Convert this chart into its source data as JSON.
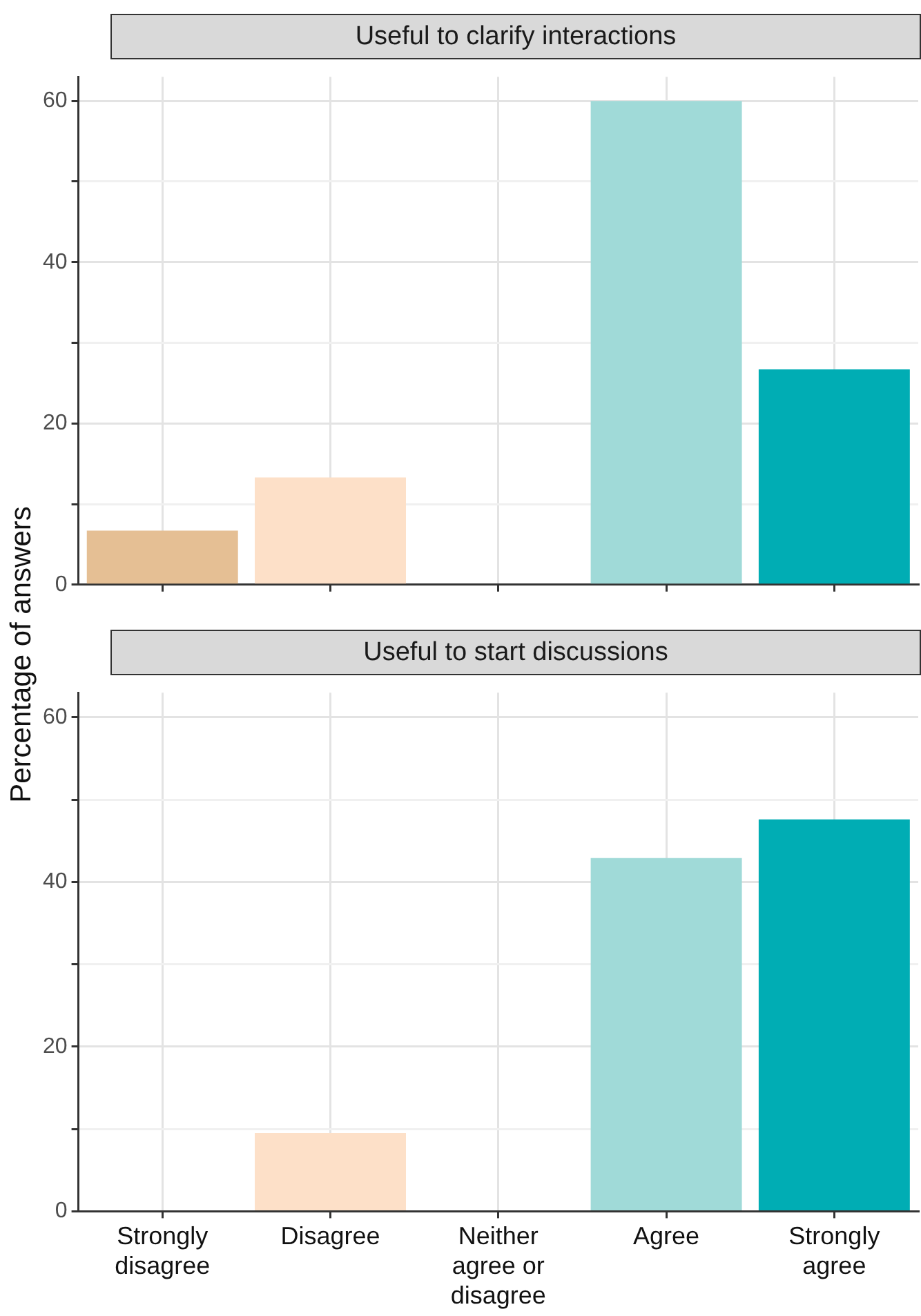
{
  "chart_data": [
    {
      "type": "bar",
      "title": "Useful to clarify interactions",
      "ylabel": "Percentage of answers",
      "categories": [
        null,
        null,
        null,
        null,
        null
      ],
      "values": [
        6.7,
        13.3,
        0,
        60,
        26.7
      ],
      "colors": [
        "#e5bf94",
        "#fde0c8",
        "#d9d9d9",
        "#a0dad8",
        "#00adb4"
      ],
      "ylim": [
        0,
        63
      ],
      "yticks": [
        0,
        {
          "value": 10,
          "label": null
        },
        20,
        {
          "value": 30,
          "label": null
        },
        40,
        {
          "value": 50,
          "label": null
        },
        60
      ],
      "grid": true,
      "tick_labels": "y"
    },
    {
      "type": "bar",
      "title": "Useful to start discussions",
      "categories": [
        "Strongly disagree",
        "Disagree",
        "Neither agree or disagree",
        "Agree",
        "Strongly agree"
      ],
      "values": [
        0,
        9.5,
        0,
        42.9,
        47.6
      ],
      "colors": [
        "#e5bf94",
        "#fde0c8",
        "#d9d9d9",
        "#a0dad8",
        "#00adb4"
      ],
      "ylim": [
        0,
        63
      ],
      "yticks": [
        0,
        {
          "value": 10,
          "label": null
        },
        20,
        {
          "value": 30,
          "label": null
        },
        40,
        {
          "value": 50,
          "label": null
        },
        60
      ],
      "grid": true
    }
  ]
}
